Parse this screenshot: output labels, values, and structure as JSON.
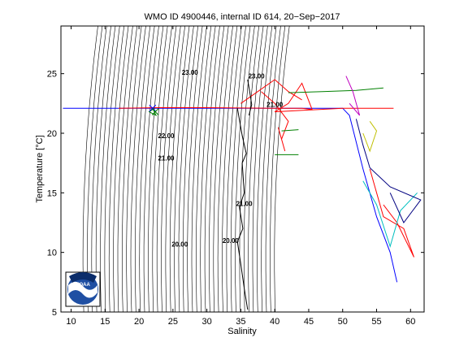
{
  "chart_data": {
    "type": "line",
    "title": "WMO ID 4900446, internal ID 614, 20−Sep−2017",
    "xlabel": "Salinity",
    "ylabel": "Temperature [°C]",
    "xlim": [
      8.5,
      62
    ],
    "ylim": [
      5,
      29
    ],
    "xticks": [
      10,
      15,
      20,
      25,
      30,
      35,
      40,
      45,
      50,
      55,
      60
    ],
    "yticks": [
      5,
      10,
      15,
      20,
      25
    ],
    "grid": false,
    "density_contours": {
      "color": "#000000",
      "sigma_min": 8,
      "sigma_max": 30,
      "step": 0.5,
      "labels": [
        {
          "text": "23.00",
          "x": 27.5,
          "y": 24.9
        },
        {
          "text": "23.00",
          "x": 37.3,
          "y": 24.6
        },
        {
          "text": "21.00",
          "x": 40.0,
          "y": 22.2
        },
        {
          "text": "22.00",
          "x": 24.0,
          "y": 19.6
        },
        {
          "text": "21.00",
          "x": 24.0,
          "y": 17.7
        },
        {
          "text": "21.00",
          "x": 35.5,
          "y": 13.9
        },
        {
          "text": "20.00",
          "x": 26.0,
          "y": 10.5
        },
        {
          "text": "20.00",
          "x": 33.5,
          "y": 10.8
        }
      ]
    },
    "series": [
      {
        "color": "#0000ff",
        "points": [
          [
            8.8,
            22.1
          ],
          [
            15,
            22.1
          ],
          [
            20,
            22.1
          ],
          [
            25,
            22.1
          ],
          [
            30,
            22.1
          ],
          [
            35,
            22.1
          ],
          [
            40,
            22.1
          ],
          [
            45,
            22.1
          ],
          [
            50,
            22.1
          ],
          [
            51,
            21.5
          ],
          [
            53,
            17
          ],
          [
            55,
            13
          ],
          [
            57,
            10
          ],
          [
            58,
            7.5
          ]
        ]
      },
      {
        "color": "#ff0000",
        "points": [
          [
            17,
            22.1
          ],
          [
            23,
            22.15
          ],
          [
            30,
            22.15
          ],
          [
            40,
            22.1
          ],
          [
            44,
            22.1
          ],
          [
            45.5,
            22.0
          ],
          [
            44,
            24.2
          ],
          [
            42,
            22.5
          ],
          [
            40,
            21.8
          ],
          [
            50,
            22.1
          ],
          [
            57.5,
            22.1
          ]
        ]
      },
      {
        "color": "#ff0000",
        "points": [
          [
            54,
            17
          ],
          [
            56,
            13
          ],
          [
            59,
            12
          ],
          [
            60.5,
            9.6
          ],
          [
            58,
            12.5
          ],
          [
            56,
            14
          ]
        ]
      },
      {
        "color": "#ff0000",
        "points": [
          [
            38,
            23.5
          ],
          [
            40,
            22.5
          ],
          [
            42,
            21
          ],
          [
            41,
            19.5
          ],
          [
            40.5,
            20.5
          ],
          [
            41.5,
            18.5
          ]
        ]
      },
      {
        "color": "#ff0000",
        "points": [
          [
            35,
            22.5
          ],
          [
            40,
            24.5
          ],
          [
            42,
            23.5
          ],
          [
            44,
            22.8
          ]
        ]
      },
      {
        "color": "#008000",
        "points": [
          [
            42,
            23.4
          ],
          [
            47,
            23.5
          ],
          [
            52,
            23.6
          ],
          [
            56,
            23.8
          ]
        ]
      },
      {
        "color": "#008000",
        "points": [
          [
            22,
            22.1
          ],
          [
            22.5,
            21.5
          ],
          [
            21.5,
            21.8
          ],
          [
            22.3,
            22.1
          ]
        ]
      },
      {
        "color": "#008000",
        "points": [
          [
            40,
            18.2
          ],
          [
            43.5,
            18.2
          ]
        ]
      },
      {
        "color": "#008000",
        "points": [
          [
            41,
            20.2
          ],
          [
            43.5,
            20.3
          ]
        ]
      },
      {
        "color": "#00bfbf",
        "points": [
          [
            53,
            16
          ],
          [
            55,
            14
          ],
          [
            57,
            10.5
          ],
          [
            58.5,
            13.5
          ],
          [
            61,
            15
          ]
        ]
      },
      {
        "color": "#000080",
        "points": [
          [
            52,
            21.2
          ],
          [
            53,
            19
          ],
          [
            54,
            17.1
          ],
          [
            57,
            15.5
          ],
          [
            61.5,
            14.4
          ],
          [
            59,
            12.5
          ],
          [
            57,
            15
          ]
        ]
      },
      {
        "color": "#bfbf00",
        "points": [
          [
            53,
            20
          ],
          [
            54,
            18.5
          ],
          [
            55,
            20.2
          ],
          [
            54,
            21
          ]
        ]
      },
      {
        "color": "#bf00bf",
        "points": [
          [
            50.5,
            24.8
          ],
          [
            51.5,
            23.5
          ],
          [
            52.5,
            21.5
          ],
          [
            51,
            22.5
          ]
        ]
      },
      {
        "color": "#000000",
        "points": [
          [
            34.5,
            22.1
          ],
          [
            35.2,
            19.8
          ],
          [
            35.8,
            18.3
          ],
          [
            35.2,
            17.5
          ],
          [
            35.5,
            15
          ],
          [
            34.8,
            13.8
          ],
          [
            35.3,
            12
          ],
          [
            34.5,
            10.9
          ],
          [
            35,
            9
          ],
          [
            35.5,
            7
          ],
          [
            36,
            5.2
          ]
        ]
      },
      {
        "color": "#000000",
        "points": [
          [
            36,
            24.5
          ],
          [
            36.3,
            23.5
          ],
          [
            36.6,
            22.4
          ],
          [
            36.2,
            21.5
          ]
        ]
      }
    ],
    "markers": [
      {
        "shape": "x",
        "color": "#0000ff",
        "x": 22,
        "y": 22.1
      },
      {
        "shape": "x",
        "color": "#008000",
        "x": 22.4,
        "y": 21.8
      }
    ]
  },
  "logo": {
    "text": "NOAA"
  }
}
